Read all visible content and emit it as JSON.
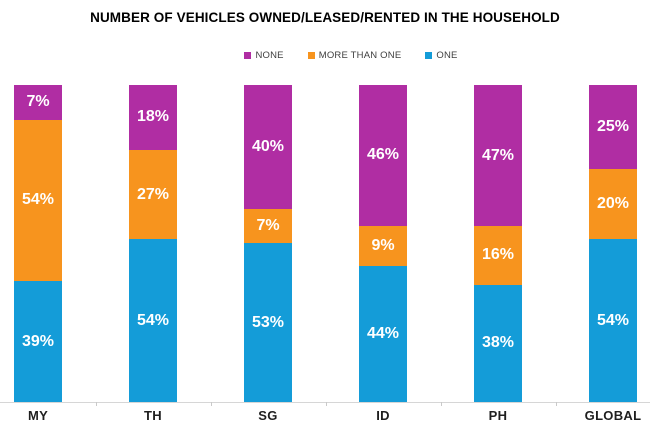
{
  "title": "NUMBER OF VEHICLES OWNED/LEASED/RENTED IN THE HOUSEHOLD",
  "legend": {
    "items": [
      {
        "label": "NONE",
        "color": "#b02da3"
      },
      {
        "label": "MORE THAN ONE",
        "color": "#f7941e"
      },
      {
        "label": "ONE",
        "color": "#149cd8"
      }
    ]
  },
  "chart_data": {
    "type": "bar",
    "stacked": true,
    "orientation": "vertical",
    "unit": "%",
    "title": "NUMBER OF VEHICLES OWNED/LEASED/RENTED IN THE HOUSEHOLD",
    "categories": [
      "MY",
      "TH",
      "SG",
      "ID",
      "PH",
      "GLOBAL"
    ],
    "series": [
      {
        "name": "NONE",
        "color": "#b02da3",
        "values": [
          7,
          18,
          40,
          46,
          47,
          25
        ]
      },
      {
        "name": "MORE THAN ONE",
        "color": "#f7941e",
        "values": [
          54,
          27,
          7,
          9,
          16,
          20
        ]
      },
      {
        "name": "ONE",
        "color": "#149cd8",
        "values": [
          39,
          54,
          53,
          44,
          38,
          54
        ]
      }
    ],
    "value_label_format": "{value}%",
    "ylim": [
      0,
      100
    ],
    "grid": false,
    "legend_position": "top",
    "axis_color": "#d6d6d6",
    "value_label_color": "#ffffff",
    "category_label_color": "#1f1f1f"
  }
}
